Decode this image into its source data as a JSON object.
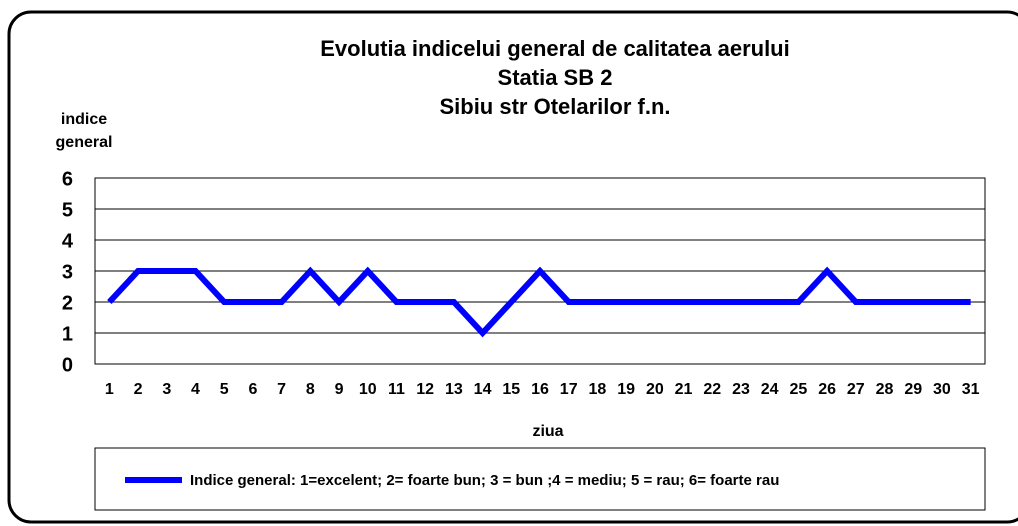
{
  "chart_data": {
    "type": "line",
    "title": [
      "Evolutia indicelui  general de calitatea aerului",
      "Statia SB 2",
      "Sibiu str Otelarilor f.n."
    ],
    "ylabel": [
      "indice",
      "general"
    ],
    "xlabel": "ziua",
    "categories": [
      "1",
      "2",
      "3",
      "4",
      "5",
      "6",
      "7",
      "8",
      "9",
      "10",
      "11",
      "12",
      "13",
      "14",
      "15",
      "16",
      "17",
      "18",
      "19",
      "20",
      "21",
      "22",
      "23",
      "24",
      "25",
      "26",
      "27",
      "28",
      "29",
      "30",
      "31"
    ],
    "series": [
      {
        "name": "Indice general: 1=excelent; 2= foarte bun; 3 = bun ;4 = mediu; 5 = rau; 6= foarte rau",
        "color": "#0000ff",
        "values": [
          2,
          3,
          3,
          3,
          2,
          2,
          2,
          3,
          2,
          3,
          2,
          2,
          2,
          1,
          2,
          3,
          2,
          2,
          2,
          2,
          2,
          2,
          2,
          2,
          2,
          3,
          2,
          2,
          2,
          2,
          2
        ]
      }
    ],
    "ylim": [
      0,
      6
    ],
    "yticks": [
      0,
      1,
      2,
      3,
      4,
      5,
      6
    ],
    "grid": true
  }
}
